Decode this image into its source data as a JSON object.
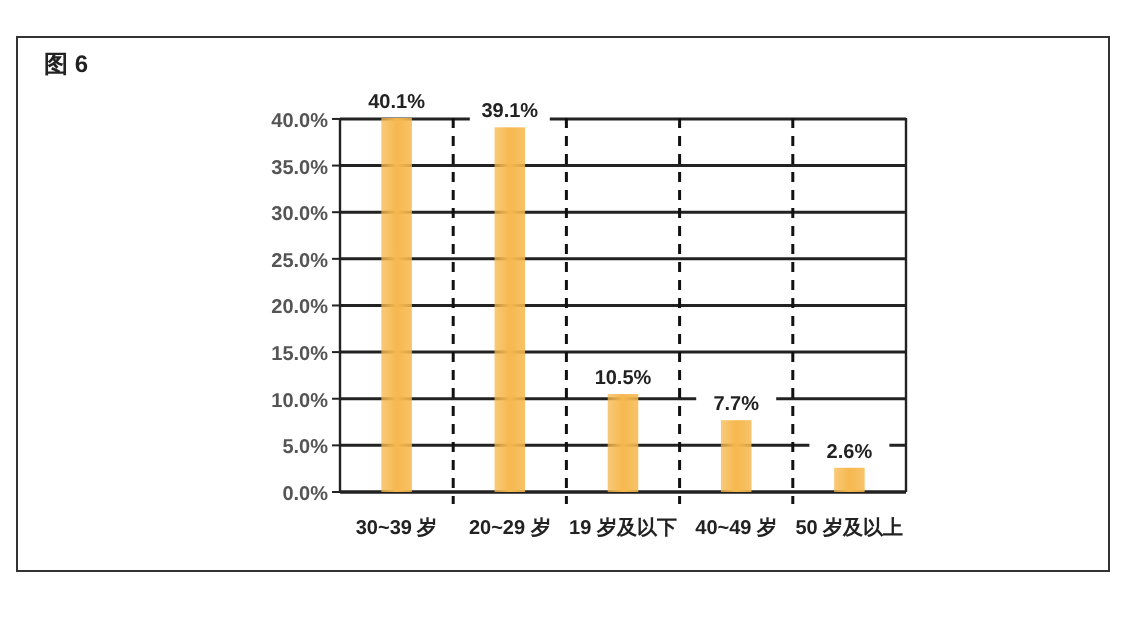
{
  "chart_data": {
    "type": "bar",
    "title": "图 6",
    "categories": [
      "30~39 岁",
      "20~29 岁",
      "19 岁及以下",
      "40~49 岁",
      "50 岁及以上"
    ],
    "values": [
      40.1,
      39.1,
      10.5,
      7.7,
      2.6
    ],
    "color": "#f6b84e",
    "value_labels": [
      "40.1%",
      "39.1%",
      "10.5%",
      "7.7%",
      "2.6%"
    ],
    "ylim": [
      0,
      40.1
    ],
    "yticks": [
      {
        "value": 0,
        "label": "0.0%"
      },
      {
        "value": 5,
        "label": "5.0%"
      },
      {
        "value": 10,
        "label": "10.0%"
      },
      {
        "value": 15,
        "label": "15.0%"
      },
      {
        "value": 20,
        "label": "20.0%"
      },
      {
        "value": 25,
        "label": "25.0%"
      },
      {
        "value": 30,
        "label": "30.0%"
      },
      {
        "value": 35,
        "label": "35.0%"
      },
      {
        "value": 40,
        "label": "40.0%"
      }
    ],
    "grid": "y"
  }
}
